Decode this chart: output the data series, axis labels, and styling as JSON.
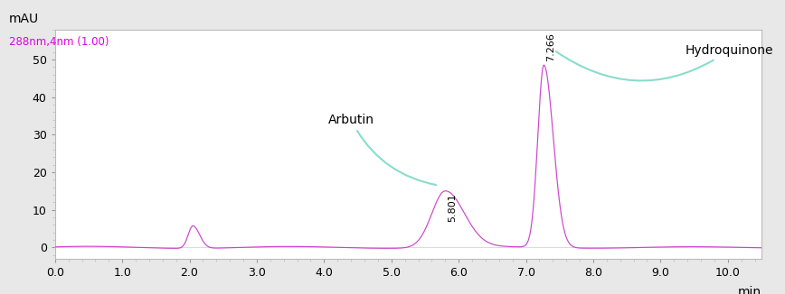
{
  "title": "288nm,4nm (1.00)",
  "ylabel": "mAU",
  "xlabel": "min",
  "xlim": [
    0.0,
    10.5
  ],
  "ylim": [
    -3,
    58
  ],
  "yticks": [
    0,
    10,
    20,
    30,
    40,
    50
  ],
  "xticks": [
    0.0,
    1.0,
    2.0,
    3.0,
    4.0,
    5.0,
    6.0,
    7.0,
    8.0,
    9.0,
    10.0
  ],
  "line_color": "#cc44cc",
  "annotation_color": "#88ddcc",
  "peak1_rt": 5.801,
  "peak1_height": 15.0,
  "peak2_rt": 7.266,
  "peak2_height": 48.5,
  "noise_peak_rt": 2.05,
  "noise_peak_height": 6.0,
  "background_color": "#e8e8e8",
  "plot_bg_color": "#ffffff",
  "title_color": "#dd00dd",
  "label1": "Arbutin",
  "label2": "Hydroquinone",
  "label1_rt_text": "5.801",
  "label2_rt_text": "7.266"
}
